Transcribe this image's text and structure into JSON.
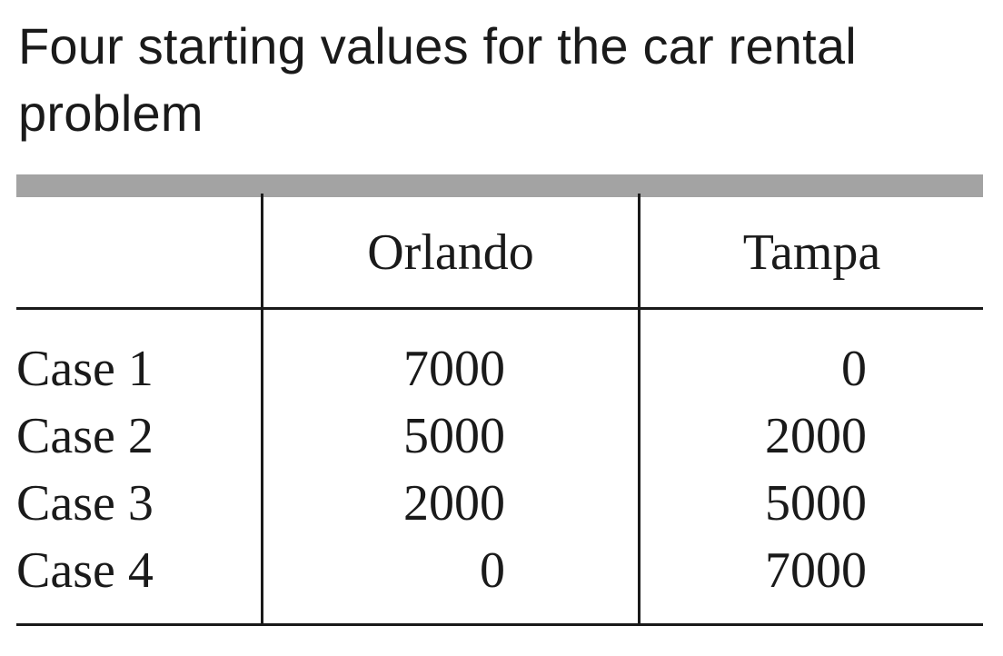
{
  "title": "Four starting values for the car rental problem",
  "table": {
    "columns": [
      "",
      "Orlando",
      "Tampa"
    ],
    "rows": [
      {
        "label": "Case 1",
        "orlando": "7000",
        "tampa": "0"
      },
      {
        "label": "Case 2",
        "orlando": "5000",
        "tampa": "2000"
      },
      {
        "label": "Case 3",
        "orlando": "2000",
        "tampa": "5000"
      },
      {
        "label": "Case 4",
        "orlando": "0",
        "tampa": "7000"
      }
    ]
  },
  "colors": {
    "header_rule": "#a3a3a3",
    "text": "#1a1a1a",
    "background": "#ffffff"
  }
}
